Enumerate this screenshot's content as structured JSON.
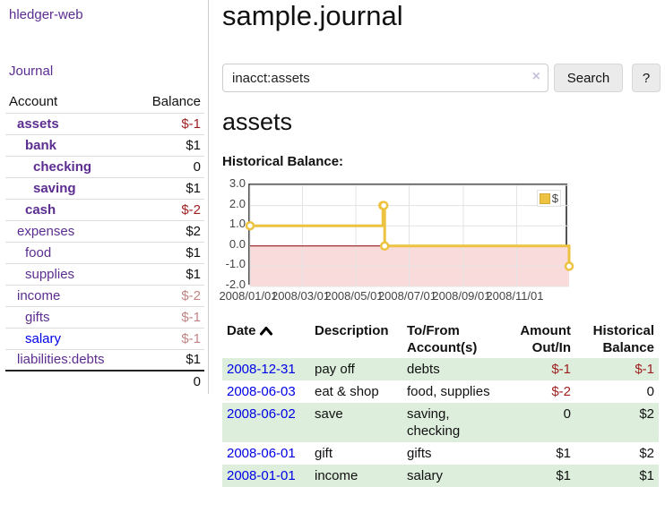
{
  "app": {
    "brand": "hledger-web",
    "journal_nav": "Journal"
  },
  "sidebar": {
    "header": {
      "account": "Account",
      "balance": "Balance"
    },
    "accounts": [
      {
        "name": "assets",
        "balance": "$-1",
        "indent": 1,
        "bold": true,
        "neg": "strong",
        "link": "visited"
      },
      {
        "name": "bank",
        "balance": "$1",
        "indent": 2,
        "bold": true,
        "neg": "none",
        "link": "visited"
      },
      {
        "name": "checking",
        "balance": "0",
        "indent": 3,
        "bold": true,
        "neg": "none",
        "link": "visited"
      },
      {
        "name": "saving",
        "balance": "$1",
        "indent": 3,
        "bold": true,
        "neg": "none",
        "link": "visited"
      },
      {
        "name": "cash",
        "balance": "$-2",
        "indent": 2,
        "bold": true,
        "neg": "strong",
        "link": "visited"
      },
      {
        "name": "expenses",
        "balance": "$2",
        "indent": 1,
        "bold": false,
        "neg": "none",
        "link": "visited"
      },
      {
        "name": "food",
        "balance": "$1",
        "indent": 2,
        "bold": false,
        "neg": "none",
        "link": "visited"
      },
      {
        "name": "supplies",
        "balance": "$1",
        "indent": 2,
        "bold": false,
        "neg": "none",
        "link": "visited"
      },
      {
        "name": "income",
        "balance": "$-2",
        "indent": 1,
        "bold": false,
        "neg": "soft",
        "link": "visited"
      },
      {
        "name": "gifts",
        "balance": "$-1",
        "indent": 2,
        "bold": false,
        "neg": "soft",
        "link": "visited"
      },
      {
        "name": "salary",
        "balance": "$-1",
        "indent": 2,
        "bold": false,
        "neg": "soft",
        "link": "unvisited"
      },
      {
        "name": "liabilities:debts",
        "balance": "$1",
        "indent": 1,
        "bold": false,
        "neg": "none",
        "link": "visited"
      }
    ],
    "total": "0"
  },
  "header": {
    "title": "sample.journal"
  },
  "search": {
    "value": "inacct:assets",
    "clear_icon": "×",
    "search_label": "Search",
    "help_label": "?"
  },
  "account_page": {
    "title": "assets",
    "chart_label": "Historical Balance:"
  },
  "chart_data": {
    "type": "line",
    "subtype": "step",
    "title": "Historical Balance:",
    "legend": [
      {
        "name": "$",
        "color": "#edc240"
      }
    ],
    "legend_position": "top-right",
    "grid": true,
    "ylim": [
      -2,
      3
    ],
    "yticks": [
      "3.0",
      "2.0",
      "1.0",
      "0.0",
      "-1.0",
      "-2.0"
    ],
    "ytick_values": [
      3,
      2,
      1,
      0,
      -1,
      -2
    ],
    "xticks": [
      "2008/01/01",
      "2008/03/01",
      "2008/05/01",
      "2008/07/01",
      "2008/09/01",
      "2008/11/01"
    ],
    "xtick_dates": [
      "2008-01-01",
      "2008-03-01",
      "2008-05-01",
      "2008-07-01",
      "2008-09-01",
      "2008-11-01"
    ],
    "xrange": [
      "2008-01-01",
      "2008-12-31"
    ],
    "series": [
      {
        "name": "$",
        "color": "#edc240",
        "points": [
          {
            "date": "2008-01-01",
            "value": 1
          },
          {
            "date": "2008-06-01",
            "value": 2
          },
          {
            "date": "2008-06-02",
            "value": 2
          },
          {
            "date": "2008-06-03",
            "value": 0
          },
          {
            "date": "2008-12-31",
            "value": -1
          }
        ]
      }
    ],
    "negative_region_color": "#fadbdb",
    "zero_line_color": "#8b0000",
    "grid_color": "#e3e3e3",
    "border_color": "#545454"
  },
  "register": {
    "columns": [
      {
        "label": "Date",
        "sorted": "asc",
        "align": "left"
      },
      {
        "label": "Description",
        "align": "left"
      },
      {
        "label": "To/From Account(s)",
        "align": "left"
      },
      {
        "label": "Amount Out/In",
        "align": "right"
      },
      {
        "label": "Historical Balance",
        "align": "right"
      }
    ],
    "rows": [
      {
        "date": "2008-12-31",
        "description": "pay off",
        "accounts": "debts",
        "amount": "$-1",
        "amount_neg": true,
        "balance": "$-1",
        "balance_neg": true,
        "shaded": true
      },
      {
        "date": "2008-06-03",
        "description": "eat & shop",
        "accounts": "food, supplies",
        "amount": "$-2",
        "amount_neg": true,
        "balance": "0",
        "balance_neg": false,
        "shaded": false
      },
      {
        "date": "2008-06-02",
        "description": "save",
        "accounts": "saving, checking",
        "amount": "0",
        "amount_neg": false,
        "balance": "$2",
        "balance_neg": false,
        "shaded": true
      },
      {
        "date": "2008-06-01",
        "description": "gift",
        "accounts": "gifts",
        "amount": "$1",
        "amount_neg": false,
        "balance": "$2",
        "balance_neg": false,
        "shaded": false
      },
      {
        "date": "2008-01-01",
        "description": "income",
        "accounts": "salary",
        "amount": "$1",
        "amount_neg": false,
        "balance": "$1",
        "balance_neg": false,
        "shaded": true
      }
    ]
  }
}
